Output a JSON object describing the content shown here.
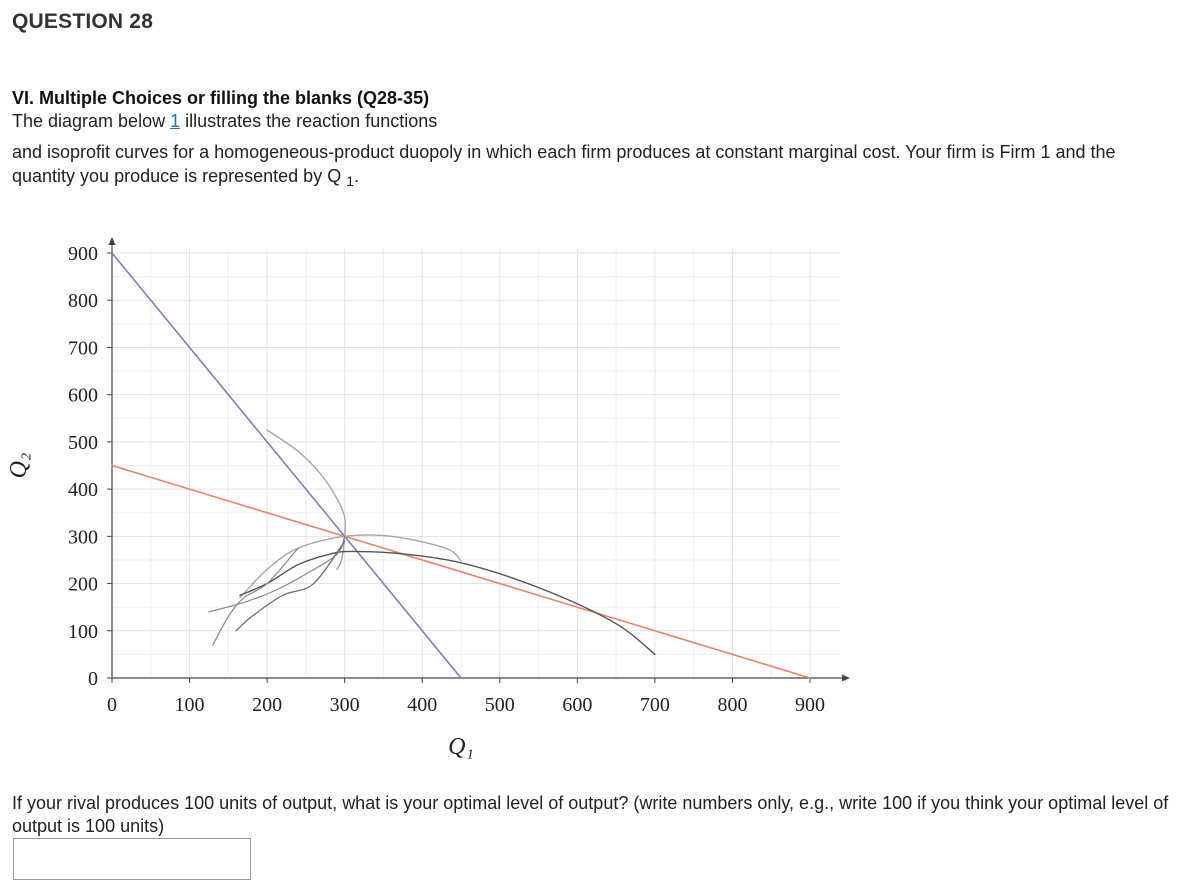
{
  "question": {
    "title": "QUESTION 28",
    "section_heading": "VI. Multiple Choices or filling the blanks (Q28-35)",
    "intro_before_link": "The diagram below ",
    "intro_link": "1",
    "intro_after_link": " illustrates the reaction functions",
    "paragraph_main": "and isoprofit curves for a homogeneous-product duopoly in which each firm produces at constant marginal cost. Your firm is Firm 1 and the quantity you produce is represented by Q ",
    "paragraph_sub": "1",
    "paragraph_end": ".",
    "prompt": "If your rival produces 100 units of output, what is your optimal level of output? (write numbers only, e.g., write 100 if you think your optimal level of output is 100 units)",
    "answer_value": ""
  },
  "chart_data": {
    "type": "line",
    "xlabel": "Q₁",
    "ylabel": "Q₂",
    "xlim": [
      0,
      900
    ],
    "ylim": [
      0,
      900
    ],
    "x_ticks": [
      0,
      100,
      200,
      300,
      400,
      500,
      600,
      700,
      800,
      900
    ],
    "y_ticks": [
      0,
      100,
      200,
      300,
      400,
      500,
      600,
      700,
      800,
      900
    ],
    "x_tick_labels": [
      "0",
      "100",
      "200",
      "300",
      "400",
      "500",
      "600",
      "700",
      "800",
      "900"
    ],
    "y_tick_labels": [
      "0",
      "100",
      "200",
      "300",
      "400",
      "500",
      "600",
      "700",
      "800",
      "900"
    ],
    "grid": true,
    "series": [
      {
        "color": "#e8856b",
        "width": 1.6,
        "points": [
          [
            0,
            450
          ],
          [
            900,
            0
          ]
        ]
      },
      {
        "color": "#7a7ec7",
        "width": 1.6,
        "points": [
          [
            0,
            900
          ],
          [
            450,
            0
          ]
        ]
      },
      {
        "color": "#a6a6a6",
        "width": 1.4,
        "points": [
          [
            200,
            525
          ],
          [
            240,
            480
          ],
          [
            270,
            430
          ],
          [
            290,
            380
          ],
          [
            300,
            340
          ],
          [
            300,
            300
          ],
          [
            296,
            250
          ],
          [
            290,
            230
          ]
        ]
      },
      {
        "color": "#a6a6a6",
        "width": 1.4,
        "points": [
          [
            165,
            170
          ],
          [
            200,
            230
          ],
          [
            240,
            275
          ],
          [
            300,
            300
          ],
          [
            360,
            300
          ],
          [
            430,
            275
          ],
          [
            450,
            248
          ]
        ]
      },
      {
        "color": "#555555",
        "width": 1.4,
        "points": [
          [
            165,
            175
          ],
          [
            200,
            200
          ],
          [
            240,
            240
          ],
          [
            280,
            262
          ],
          [
            310,
            268
          ],
          [
            380,
            262
          ],
          [
            460,
            240
          ],
          [
            560,
            185
          ],
          [
            650,
            115
          ],
          [
            700,
            50
          ]
        ]
      },
      {
        "color": "#888888",
        "width": 1.2,
        "points": [
          [
            125,
            140
          ],
          [
            170,
            160
          ],
          [
            210,
            185
          ],
          [
            250,
            220
          ],
          [
            290,
            262
          ],
          [
            300,
            300
          ]
        ]
      },
      {
        "color": "#666666",
        "width": 1.2,
        "points": [
          [
            160,
            100
          ],
          [
            180,
            130
          ],
          [
            220,
            175
          ],
          [
            260,
            200
          ],
          [
            300,
            290
          ]
        ]
      },
      {
        "color": "#888888",
        "width": 1.2,
        "points": [
          [
            130,
            70
          ],
          [
            150,
            130
          ],
          [
            170,
            170
          ],
          [
            200,
            200
          ],
          [
            240,
            275
          ]
        ]
      }
    ]
  }
}
